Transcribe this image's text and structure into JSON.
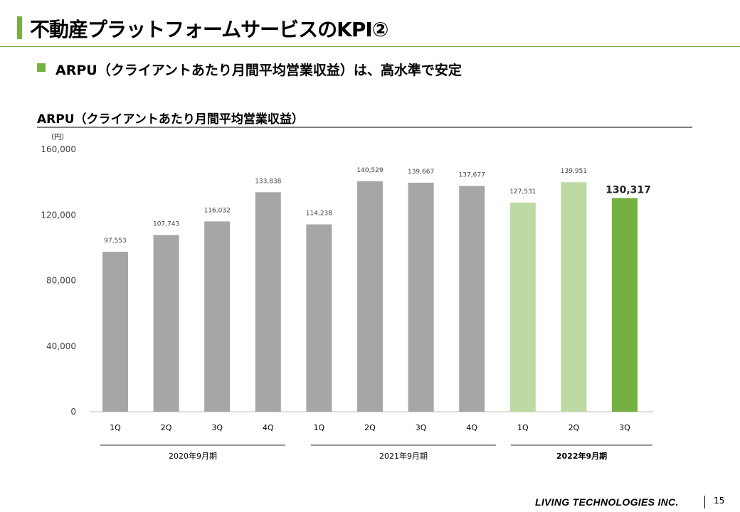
{
  "header": {
    "title": "不動産プラットフォームサービスのKPI②",
    "subtitle": "ARPU（クライアントあたり月間平均営業収益）は、高水準で安定"
  },
  "colors": {
    "accent": "#76b041",
    "gray_bar": "#a6a6a6",
    "light_green_bar": "#bdd9a4",
    "dark_green_bar": "#76b041"
  },
  "chart_data": {
    "type": "bar",
    "title": "ARPU（クライアントあたり月間平均営業収益）",
    "unit": "（円）",
    "ylim": [
      0,
      160000
    ],
    "yticks": [
      0,
      40000,
      80000,
      120000,
      160000
    ],
    "ytick_labels": [
      "0",
      "40,000",
      "80,000",
      "120,000",
      "160,000"
    ],
    "categories": [
      "1Q",
      "2Q",
      "3Q",
      "4Q",
      "1Q",
      "2Q",
      "3Q",
      "4Q",
      "1Q",
      "2Q",
      "3Q"
    ],
    "values": [
      97553,
      107743,
      116032,
      133838,
      114238,
      140529,
      139667,
      137677,
      127531,
      139951,
      130317
    ],
    "value_labels": [
      "97,553",
      "107,743",
      "116,032",
      "133,838",
      "114,238",
      "140,529",
      "139,667",
      "137,677",
      "127,531",
      "139,951",
      "130,317"
    ],
    "bar_styles": [
      "gray",
      "gray",
      "gray",
      "gray",
      "gray",
      "gray",
      "gray",
      "gray",
      "light",
      "light",
      "dark"
    ],
    "highlight_index": 10,
    "groups": [
      {
        "label": "2020年9月期",
        "bold": false
      },
      {
        "label": "2021年9月期",
        "bold": false
      },
      {
        "label": "2022年9月期",
        "bold": true
      }
    ],
    "grid": false
  },
  "footer": {
    "company": "LIVING TECHNOLOGIES INC.",
    "page": "15"
  }
}
